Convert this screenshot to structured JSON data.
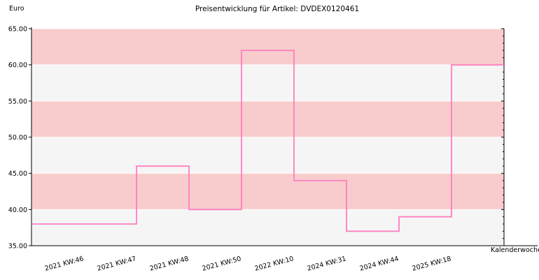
{
  "chart_data": {
    "type": "line",
    "step": true,
    "title": "Preisentwicklung für Artikel: DVDEX0120461",
    "ylabel": "Euro",
    "xlabel": "Kalenderwoche",
    "ylim": [
      35,
      65
    ],
    "yticks": [
      "35.00",
      "40.00",
      "45.00",
      "50.00",
      "55.00",
      "60.00",
      "65.00"
    ],
    "ytick_values": [
      35,
      40,
      45,
      50,
      55,
      60,
      65
    ],
    "categories": [
      "2021 KW:46",
      "2021 KW:47",
      "2021 KW:48",
      "2021 KW:50",
      "2022 KW:10",
      "2024 KW:31",
      "2024 KW:44",
      "2025 KW:18"
    ],
    "values": [
      38,
      46,
      40,
      62,
      44,
      37,
      39,
      60
    ],
    "colors": {
      "line": "#ff7fbf",
      "band_pink": "#f8cccc",
      "band_light": "#f5f5f5",
      "grid": "#ffffff",
      "axis": "#000000"
    },
    "grid": true,
    "legend": "none"
  }
}
